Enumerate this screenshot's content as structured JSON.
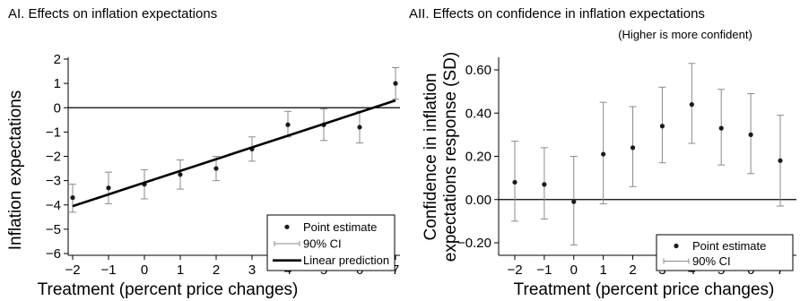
{
  "chart_data": [
    {
      "type": "scatter",
      "title": "AI. Effects on inflation expectations",
      "subtitle": "",
      "xlabel": "Treatment (percent price changes)",
      "ylabel": "Inflation expectations",
      "xlim": [
        -2,
        7
      ],
      "ylim": [
        -6,
        2
      ],
      "xticks": [
        -2,
        -1,
        0,
        1,
        2,
        3,
        4,
        5,
        6,
        7
      ],
      "yticks": [
        2,
        1,
        0,
        -1,
        -2,
        -3,
        -4,
        -5,
        -6
      ],
      "ytick_labels": [
        "2",
        "1",
        "0",
        "−1",
        "−2",
        "−3",
        "−4",
        "−5",
        "−6"
      ],
      "xtick_labels": [
        "−2",
        "−1",
        "0",
        "1",
        "2",
        "3",
        "4",
        "5",
        "6",
        "7"
      ],
      "reference_line_y": 0,
      "grid": false,
      "legend_position": "bottom-right",
      "legend": [
        "Point estimate",
        "90% CI",
        "Linear prediction"
      ],
      "series": [
        {
          "name": "Point estimate",
          "x": [
            -2,
            -1,
            0,
            1,
            2,
            3,
            4,
            5,
            6,
            7
          ],
          "y": [
            -3.7,
            -3.3,
            -3.15,
            -2.75,
            -2.5,
            -1.7,
            -0.7,
            -0.7,
            -0.8,
            1.0
          ],
          "ci_low": [
            -4.3,
            -3.95,
            -3.75,
            -3.35,
            -3.0,
            -2.2,
            -1.2,
            -1.35,
            -1.45,
            0.35
          ],
          "ci_high": [
            -3.15,
            -2.65,
            -2.55,
            -2.15,
            -2.0,
            -1.2,
            -0.15,
            -0.05,
            -0.15,
            1.65
          ]
        },
        {
          "name": "Linear prediction",
          "x": [
            -2,
            7
          ],
          "y": [
            -4.05,
            0.3
          ]
        }
      ]
    },
    {
      "type": "scatter",
      "title": "AII. Effects on confidence in inflation expectations",
      "subtitle": "(Higher is more confident)",
      "xlabel": "Treatment (percent price changes)",
      "ylabel_lines": [
        "Confidence in inflation",
        "expectations response (SD)"
      ],
      "xlim": [
        -2,
        7
      ],
      "ylim": [
        -0.2,
        0.6
      ],
      "xticks": [
        -2,
        -1,
        0,
        1,
        2,
        3,
        4,
        5,
        6,
        7
      ],
      "yticks": [
        0.6,
        0.4,
        0.2,
        0.0,
        -0.2
      ],
      "ytick_labels": [
        "0.60",
        "0.40",
        "0.20",
        "0.00",
        "−0.20"
      ],
      "xtick_labels": [
        "−2",
        "−1",
        "0",
        "1",
        "2",
        "3",
        "4",
        "5",
        "6",
        "7"
      ],
      "reference_line_y": 0,
      "grid": false,
      "legend_position": "bottom-right",
      "legend": [
        "Point estimate",
        "90% CI"
      ],
      "series": [
        {
          "name": "Point estimate",
          "x": [
            -2,
            -1,
            0,
            1,
            2,
            3,
            4,
            5,
            6,
            7
          ],
          "y": [
            0.08,
            0.07,
            -0.01,
            0.21,
            0.24,
            0.34,
            0.44,
            0.33,
            0.3,
            0.18
          ],
          "ci_low": [
            -0.1,
            -0.09,
            -0.21,
            -0.02,
            0.06,
            0.17,
            0.26,
            0.16,
            0.12,
            -0.03
          ],
          "ci_high": [
            0.27,
            0.24,
            0.2,
            0.45,
            0.43,
            0.52,
            0.63,
            0.51,
            0.49,
            0.39
          ]
        }
      ]
    }
  ]
}
